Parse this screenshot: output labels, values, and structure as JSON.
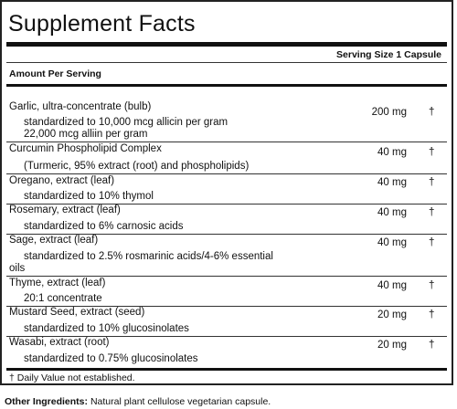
{
  "panel": {
    "title": "Supplement Facts",
    "serving_size": "Serving Size 1 Capsule",
    "amount_per_serving": "Amount Per Serving",
    "footnote": "† Daily Value not established."
  },
  "ingredients": [
    {
      "name": "Garlic, ultra-concentrate (bulb)",
      "amount": "200 mg",
      "dv": "†",
      "details": [
        "standardized to 10,000 mcg allicin per gram",
        "22,000 mcg alliin per gram"
      ]
    },
    {
      "name": "Curcumin Phospholipid Complex",
      "amount": "40 mg",
      "dv": "†",
      "details": [
        "(Turmeric, 95% extract (root) and phospholipids)"
      ]
    },
    {
      "name": "Oregano, extract (leaf)",
      "amount": "40 mg",
      "dv": "†",
      "details": [
        "standardized to 10% thymol"
      ]
    },
    {
      "name": "Rosemary, extract (leaf)",
      "amount": "40 mg",
      "dv": "†",
      "details": [
        "standardized to 6% carnosic acids"
      ]
    },
    {
      "name": "Sage, extract (leaf)",
      "amount": "40 mg",
      "dv": "†",
      "details": [
        "standardized to 2.5% rosmarinic acids/4-6% essential",
        "oils"
      ]
    },
    {
      "name": "Thyme, extract (leaf)",
      "amount": "40 mg",
      "dv": "†",
      "details": [
        "20:1 concentrate"
      ]
    },
    {
      "name": "Mustard Seed, extract (seed)",
      "amount": "20 mg",
      "dv": "†",
      "details": [
        "standardized to 10% glucosinolates"
      ]
    },
    {
      "name": "Wasabi, extract (root)",
      "amount": "20 mg",
      "dv": "†",
      "details": [
        "standardized to 0.75% glucosinolates"
      ]
    }
  ],
  "other_ingredients": {
    "label": "Other Ingredients:",
    "text": "Natural plant cellulose vegetarian capsule."
  }
}
